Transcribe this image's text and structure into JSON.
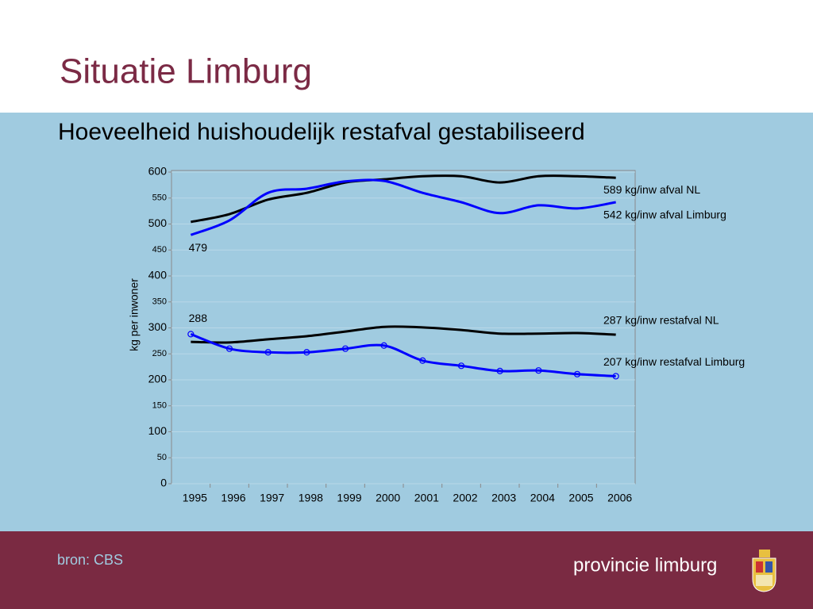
{
  "slide": {
    "title": "Situatie Limburg",
    "subtitle": "Hoeveelheid huishoudelijk restafval gestabiliseerd",
    "source": "bron: CBS",
    "brand": "provincie limburg"
  },
  "chart_data": {
    "type": "line",
    "y_label": "kg per inwoner",
    "categories": [
      "1995",
      "1996",
      "1997",
      "1998",
      "1999",
      "2000",
      "2001",
      "2002",
      "2003",
      "2004",
      "2005",
      "2006"
    ],
    "ylim": [
      0,
      600
    ],
    "yticks": [
      0,
      50,
      100,
      150,
      200,
      250,
      300,
      350,
      400,
      450,
      500,
      550,
      600
    ],
    "grid": true,
    "series": [
      {
        "name": "589 kg/inw afval NL",
        "color": "#000000",
        "markers": false,
        "label_first": false,
        "values": [
          504,
          519,
          547,
          560,
          580,
          586,
          592,
          592,
          580,
          592,
          592,
          589
        ]
      },
      {
        "name": "542 kg/inw afval Limburg",
        "color": "#0000ff",
        "markers": false,
        "label_first": true,
        "values": [
          479,
          507,
          560,
          568,
          582,
          583,
          560,
          542,
          521,
          536,
          530,
          542
        ]
      },
      {
        "name": "287 kg/inw restafval NL",
        "color": "#000000",
        "markers": false,
        "label_first": false,
        "values": [
          273,
          272,
          278,
          284,
          293,
          302,
          301,
          296,
          289,
          289,
          290,
          287
        ]
      },
      {
        "name": "207 kg/inw restafval Limburg",
        "color": "#0000ff",
        "markers": true,
        "label_first": true,
        "values": [
          288,
          260,
          253,
          253,
          260,
          266,
          237,
          227,
          217,
          218,
          211,
          207
        ]
      }
    ]
  }
}
